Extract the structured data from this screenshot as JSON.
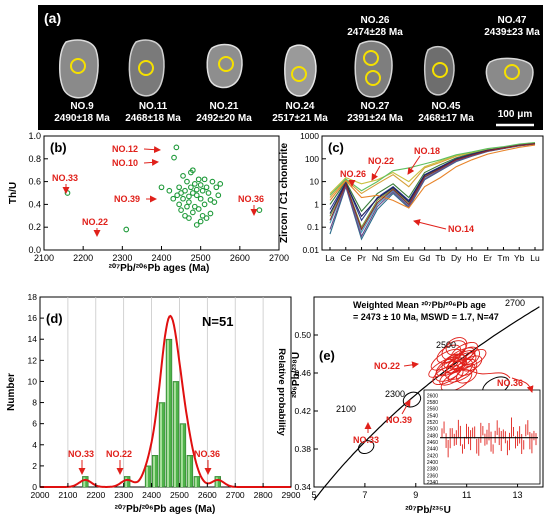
{
  "panel_a": {
    "label": "(a)",
    "scale_bar": "100 μm",
    "grains": [
      {
        "name": "NO.9",
        "age": "2490±18 Ma"
      },
      {
        "name": "NO.11",
        "age": "2468±18 Ma"
      },
      {
        "name": "NO.21",
        "age": "2492±20 Ma"
      },
      {
        "name": "NO.24",
        "age": "2517±21 Ma"
      },
      {
        "name": "NO.27",
        "age": "2391±24 Ma",
        "top_name": "NO.26",
        "top_age": "2474±28 Ma"
      },
      {
        "name": "NO.45",
        "age": "2468±17 Ma"
      },
      {
        "name": "NO.47",
        "age": "2439±23 Ma",
        "label_above": true
      }
    ]
  },
  "chart_data": [
    {
      "panel": "(b)",
      "type": "scatter",
      "xlabel": "²⁰⁷Pb/²⁰⁶Pb ages (Ma)",
      "ylabel": "Th/U",
      "xlim": [
        2100,
        2700
      ],
      "ylim": [
        0,
        1.0
      ],
      "xticks": [
        "2100",
        "2200",
        "2300",
        "2400",
        "2500",
        "2600",
        "2700"
      ],
      "yticks": [
        "0.0",
        "0.2",
        "0.4",
        "0.6",
        "0.8",
        "1.0"
      ],
      "points": [
        [
          2160,
          0.5
        ],
        [
          2310,
          0.18
        ],
        [
          2650,
          0.35
        ],
        [
          2438,
          0.9
        ],
        [
          2432,
          0.81
        ],
        [
          2400,
          0.55
        ],
        [
          2440,
          0.48
        ],
        [
          2445,
          0.55
        ],
        [
          2450,
          0.5
        ],
        [
          2455,
          0.45
        ],
        [
          2460,
          0.52
        ],
        [
          2465,
          0.6
        ],
        [
          2470,
          0.42
        ],
        [
          2475,
          0.55
        ],
        [
          2480,
          0.5
        ],
        [
          2485,
          0.38
        ],
        [
          2490,
          0.48
        ],
        [
          2495,
          0.62
        ],
        [
          2500,
          0.45
        ],
        [
          2505,
          0.52
        ],
        [
          2510,
          0.4
        ],
        [
          2515,
          0.55
        ],
        [
          2520,
          0.5
        ],
        [
          2525,
          0.44
        ],
        [
          2530,
          0.6
        ],
        [
          2540,
          0.55
        ],
        [
          2450,
          0.35
        ],
        [
          2460,
          0.3
        ],
        [
          2470,
          0.28
        ],
        [
          2480,
          0.33
        ],
        [
          2490,
          0.22
        ],
        [
          2500,
          0.25
        ],
        [
          2455,
          0.65
        ],
        [
          2475,
          0.68
        ],
        [
          2485,
          0.58
        ],
        [
          2445,
          0.4
        ],
        [
          2465,
          0.38
        ],
        [
          2495,
          0.36
        ],
        [
          2505,
          0.3
        ],
        [
          2515,
          0.28
        ],
        [
          2525,
          0.32
        ],
        [
          2510,
          0.62
        ],
        [
          2480,
          0.7
        ],
        [
          2430,
          0.45
        ],
        [
          2420,
          0.52
        ],
        [
          2550,
          0.58
        ],
        [
          2545,
          0.48
        ],
        [
          2535,
          0.42
        ],
        [
          2470,
          0.47
        ],
        [
          2490,
          0.53
        ],
        [
          2500,
          0.57
        ]
      ],
      "annotations": [
        "NO.12",
        "NO.10",
        "NO.33",
        "NO.39",
        "NO.22",
        "NO.36"
      ]
    },
    {
      "panel": "(c)",
      "type": "line",
      "ylabel": "Zircon / C1 chondrite",
      "yscale": "log",
      "ylim": [
        0.01,
        1000
      ],
      "yticks": [
        "0.01",
        "0.1",
        "1",
        "10",
        "100",
        "1000"
      ],
      "categories": [
        "La",
        "Ce",
        "Pr",
        "Nd",
        "Sm",
        "Eu",
        "Gd",
        "Tb",
        "Dy",
        "Ho",
        "Er",
        "Tm",
        "Yb",
        "Lu"
      ],
      "series": [
        {
          "color": "#d7a13a",
          "values": [
            2,
            12,
            3,
            8,
            20,
            6,
            40,
            70,
            130,
            180,
            260,
            320,
            420,
            500
          ]
        },
        {
          "color": "#3a7d3a",
          "values": [
            1,
            10,
            0.5,
            3,
            8,
            2,
            25,
            55,
            110,
            170,
            250,
            320,
            410,
            480
          ]
        },
        {
          "color": "#2c3e8f",
          "values": [
            0.6,
            9,
            0.2,
            2,
            6,
            1.5,
            20,
            45,
            100,
            160,
            240,
            310,
            400,
            470
          ]
        },
        {
          "color": "#7a9a3a",
          "values": [
            0.3,
            8,
            0.1,
            1.5,
            5,
            1.2,
            18,
            40,
            95,
            150,
            230,
            300,
            390,
            460
          ]
        },
        {
          "color": "#4a9fbf",
          "values": [
            0.15,
            7,
            0.06,
            1,
            4,
            0.9,
            15,
            35,
            85,
            140,
            220,
            290,
            380,
            450
          ]
        },
        {
          "color": "#2a6c8a",
          "values": [
            0.05,
            6,
            0.03,
            0.6,
            3,
            0.7,
            12,
            30,
            75,
            130,
            210,
            280,
            370,
            440
          ]
        },
        {
          "color": "#6b4a8a",
          "values": [
            0.08,
            6.5,
            0.04,
            0.8,
            3.5,
            0.8,
            13,
            32,
            80,
            135,
            215,
            285,
            375,
            445
          ]
        },
        {
          "color": "#c9c040",
          "values": [
            3,
            15,
            8,
            12,
            25,
            10,
            45,
            80,
            140,
            190,
            270,
            330,
            430,
            510
          ]
        },
        {
          "color": "#e8842a",
          "values": [
            1.5,
            11,
            2,
            2.5,
            1.5,
            0.7,
            6,
            15,
            45,
            90,
            160,
            230,
            320,
            400
          ]
        },
        {
          "color": "#5fbf5f",
          "values": [
            2.5,
            13,
            4,
            10,
            30,
            40,
            60,
            90,
            150,
            200,
            280,
            340,
            440,
            520
          ]
        },
        {
          "color": "#1f1f5f",
          "values": [
            0.4,
            8.5,
            0.3,
            1.8,
            5.5,
            1.3,
            19,
            42,
            97,
            155,
            235,
            305,
            395,
            465
          ]
        },
        {
          "color": "#8a2a2a",
          "values": [
            0.2,
            7.5,
            0.08,
            1.2,
            4.5,
            1.0,
            16,
            37,
            90,
            145,
            225,
            295,
            385,
            455
          ]
        }
      ],
      "annotations": [
        "NO.22",
        "NO.18",
        "NO.26",
        "NO.14"
      ]
    },
    {
      "panel": "(d)",
      "type": "bar",
      "xlabel": "²⁰⁷Pb/²⁰⁶Pb ages (Ma)",
      "ylabel": "Number",
      "y2label": "Relative probability",
      "xlim": [
        2000,
        2900
      ],
      "ylim": [
        0,
        18
      ],
      "xticks": [
        "2000",
        "2100",
        "2200",
        "2300",
        "2400",
        "2500",
        "2600",
        "2700",
        "2800",
        "2900"
      ],
      "yticks": [
        "0",
        "2",
        "4",
        "6",
        "8",
        "10",
        "12",
        "14",
        "16",
        "18"
      ],
      "title": "N=51",
      "bins": [
        {
          "x0": 2150,
          "x1": 2175,
          "count": 1
        },
        {
          "x0": 2300,
          "x1": 2325,
          "count": 1
        },
        {
          "x0": 2375,
          "x1": 2400,
          "count": 2
        },
        {
          "x0": 2400,
          "x1": 2425,
          "count": 3
        },
        {
          "x0": 2425,
          "x1": 2450,
          "count": 8
        },
        {
          "x0": 2450,
          "x1": 2475,
          "count": 14
        },
        {
          "x0": 2475,
          "x1": 2500,
          "count": 10
        },
        {
          "x0": 2500,
          "x1": 2525,
          "count": 6
        },
        {
          "x0": 2525,
          "x1": 2550,
          "count": 3
        },
        {
          "x0": 2550,
          "x1": 2575,
          "count": 1
        },
        {
          "x0": 2625,
          "x1": 2650,
          "count": 1
        }
      ],
      "probability_curve": {
        "color": "#e01010"
      },
      "annotations": [
        "NO.33",
        "NO.22",
        "NO.36"
      ]
    },
    {
      "panel": "(e)",
      "type": "scatter",
      "xlabel": "²⁰⁷Pb/²³⁵U",
      "ylabel": "²⁰⁶Pb/²³⁸U",
      "xlim": [
        5,
        14
      ],
      "ylim": [
        0.34,
        0.54
      ],
      "xticks": [
        "5",
        "7",
        "9",
        "11",
        "13"
      ],
      "yticks": [
        "0.34",
        "0.38",
        "0.42",
        "0.46",
        "0.50"
      ],
      "title": "Weighted Mean ²⁰⁷Pb/²⁰⁶Pb age",
      "subtitle": "= 2473 ± 10 Ma, MSWD = 1.7, N=47",
      "concordia_ages": [
        "2100",
        "2300",
        "2500",
        "2700"
      ],
      "black_ellipses": [
        [
          7.05,
          0.382
        ],
        [
          8.85,
          0.432
        ],
        [
          12.15,
          0.446
        ]
      ],
      "inset": {
        "yticks": [
          "2600",
          "2580",
          "2560",
          "2540",
          "2520",
          "2500",
          "2480",
          "2460",
          "2440",
          "2420",
          "2400",
          "2380",
          "2360",
          "2340"
        ],
        "mean": 2473,
        "ylim": [
          2340,
          2610
        ]
      },
      "annotations": [
        "NO.22",
        "NO.39",
        "NO.33",
        "NO.36"
      ]
    }
  ]
}
